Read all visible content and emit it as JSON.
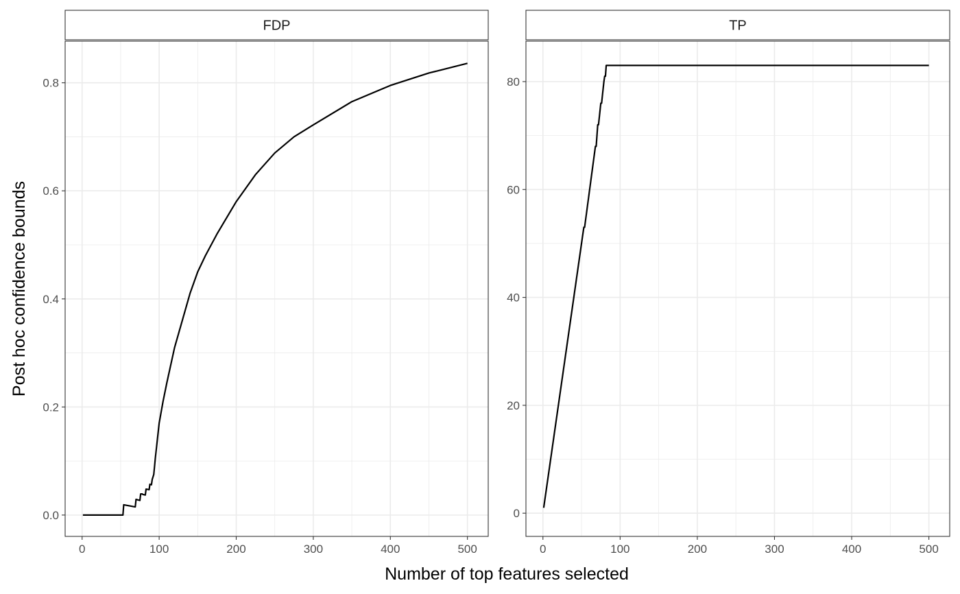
{
  "figure": {
    "xlabel": "Number of top features selected",
    "ylabel": "Post hoc confidence bounds"
  },
  "chart_data": [
    {
      "type": "line",
      "facet": "FDP",
      "xlim": [
        -22,
        527
      ],
      "ylim": [
        -0.0395,
        0.877
      ],
      "x_ticks": [
        0,
        100,
        200,
        300,
        400,
        500
      ],
      "y_ticks": [
        0.0,
        0.2,
        0.4,
        0.6,
        0.8
      ],
      "y_tick_labels": [
        "0.0",
        "0.2",
        "0.4",
        "0.6",
        "0.8"
      ],
      "grid": true,
      "series": [
        {
          "x": [
            1,
            53,
            54,
            69,
            70,
            75,
            76,
            78,
            79,
            82,
            83,
            87,
            88,
            90,
            91,
            93,
            95,
            100,
            105,
            110,
            120,
            130,
            140,
            150,
            160,
            175,
            200,
            225,
            250,
            275,
            300,
            350,
            400,
            450,
            500
          ],
          "y": [
            0.0,
            0.0,
            0.019,
            0.015,
            0.029,
            0.027,
            0.039,
            0.039,
            0.038,
            0.037,
            0.048,
            0.047,
            0.057,
            0.056,
            0.066,
            0.075,
            0.105,
            0.17,
            0.21,
            0.245,
            0.31,
            0.36,
            0.41,
            0.45,
            0.48,
            0.52,
            0.58,
            0.63,
            0.67,
            0.7,
            0.722,
            0.765,
            0.795,
            0.818,
            0.836
          ]
        }
      ]
    },
    {
      "type": "line",
      "facet": "TP",
      "xlim": [
        -22,
        527
      ],
      "ylim": [
        -4.3,
        87.5
      ],
      "x_ticks": [
        0,
        100,
        200,
        300,
        400,
        500
      ],
      "y_ticks": [
        0,
        20,
        40,
        60,
        80
      ],
      "y_tick_labels": [
        "0",
        "20",
        "40",
        "60",
        "80"
      ],
      "grid": true,
      "series": [
        {
          "x": [
            1,
            53,
            54,
            68,
            69,
            71,
            72,
            75,
            76,
            79,
            80,
            81,
            82,
            86,
            500
          ],
          "y": [
            1,
            53,
            53,
            68,
            68,
            72,
            72,
            76,
            76,
            80,
            81,
            81,
            83,
            83,
            83
          ]
        }
      ]
    }
  ]
}
